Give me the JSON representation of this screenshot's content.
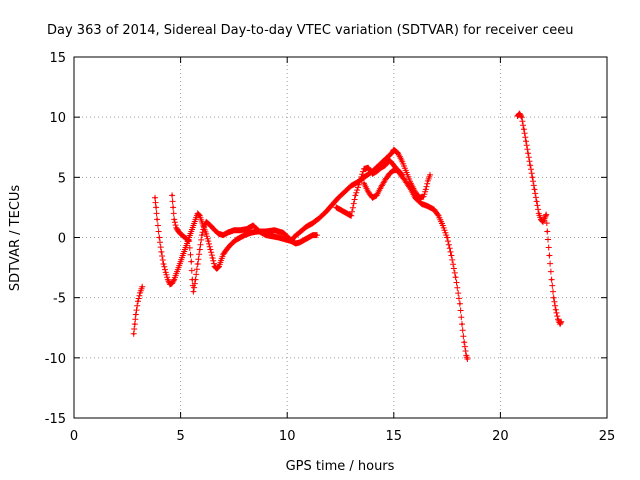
{
  "chart_data": {
    "type": "scatter",
    "title": "Day 363 of 2014, Sidereal Day-to-day VTEC variation (SDTVAR) for receiver ceeu",
    "xlabel": "GPS time / hours",
    "ylabel": "SDTVAR / TECUs",
    "xlim": [
      0,
      25
    ],
    "ylim": [
      -15,
      15
    ],
    "x_ticks": [
      0,
      5,
      10,
      15,
      20,
      25
    ],
    "y_ticks": [
      -15,
      -10,
      -5,
      0,
      5,
      10,
      15
    ],
    "x_tick_labels": [
      "0",
      "5",
      "10",
      "15",
      "20",
      "25"
    ],
    "y_tick_labels": [
      "-15",
      "-10",
      "-5",
      "0",
      "5",
      "10",
      "15"
    ],
    "grid": true,
    "marker": "+",
    "color": "#ff0000",
    "series": [
      {
        "name": "s1",
        "points": [
          [
            2.8,
            -8.0
          ],
          [
            2.85,
            -7.2
          ],
          [
            2.9,
            -6.4
          ],
          [
            3.0,
            -5.3
          ],
          [
            3.1,
            -4.6
          ],
          [
            3.2,
            -4.1
          ]
        ]
      },
      {
        "name": "s2",
        "points": [
          [
            3.8,
            3.3
          ],
          [
            3.85,
            2.5
          ],
          [
            3.9,
            1.5
          ],
          [
            4.0,
            0.0
          ],
          [
            4.1,
            -1.2
          ],
          [
            4.2,
            -2.2
          ],
          [
            4.3,
            -2.9
          ],
          [
            4.4,
            -3.5
          ],
          [
            4.5,
            -3.9
          ],
          [
            4.6,
            -3.8
          ],
          [
            4.7,
            -3.5
          ],
          [
            4.8,
            -3.0
          ],
          [
            4.9,
            -2.5
          ],
          [
            5.0,
            -2.0
          ],
          [
            5.1,
            -1.5
          ],
          [
            5.2,
            -1.0
          ],
          [
            5.3,
            -0.5
          ],
          [
            5.4,
            0.0
          ],
          [
            5.5,
            0.5
          ],
          [
            5.6,
            1.0
          ],
          [
            5.7,
            1.5
          ],
          [
            5.8,
            2.0
          ],
          [
            5.9,
            1.8
          ],
          [
            6.0,
            1.3
          ],
          [
            6.1,
            0.8
          ],
          [
            6.2,
            0.3
          ],
          [
            6.3,
            -0.3
          ],
          [
            6.4,
            -1.0
          ],
          [
            6.5,
            -1.7
          ],
          [
            6.6,
            -2.4
          ],
          [
            6.7,
            -2.6
          ],
          [
            6.8,
            -2.4
          ],
          [
            6.9,
            -1.9
          ],
          [
            7.0,
            -1.4
          ],
          [
            7.2,
            -0.9
          ],
          [
            7.4,
            -0.5
          ],
          [
            7.6,
            -0.2
          ],
          [
            7.8,
            0.0
          ],
          [
            8.0,
            0.2
          ],
          [
            8.3,
            0.4
          ],
          [
            8.6,
            0.5
          ],
          [
            9.0,
            0.5
          ],
          [
            9.4,
            0.6
          ],
          [
            9.8,
            0.4
          ],
          [
            10.0,
            0.1
          ],
          [
            10.2,
            -0.3
          ],
          [
            10.4,
            -0.5
          ],
          [
            10.6,
            -0.4
          ],
          [
            10.8,
            -0.2
          ],
          [
            11.0,
            0.0
          ],
          [
            11.2,
            0.2
          ],
          [
            11.4,
            0.2
          ]
        ]
      },
      {
        "name": "s3",
        "points": [
          [
            4.6,
            3.5
          ],
          [
            4.65,
            2.5
          ],
          [
            4.7,
            1.5
          ],
          [
            4.8,
            0.8
          ],
          [
            4.9,
            0.5
          ],
          [
            5.0,
            0.3
          ],
          [
            5.2,
            0.0
          ],
          [
            5.4,
            -0.3
          ],
          [
            5.5,
            -2.0
          ],
          [
            5.55,
            -3.5
          ],
          [
            5.6,
            -4.5
          ],
          [
            5.7,
            -3.5
          ],
          [
            5.8,
            -2.2
          ],
          [
            5.9,
            -1.0
          ],
          [
            6.0,
            0.2
          ],
          [
            6.1,
            0.9
          ],
          [
            6.2,
            1.3
          ],
          [
            6.4,
            1.0
          ],
          [
            6.6,
            0.6
          ],
          [
            6.8,
            0.3
          ],
          [
            7.0,
            0.2
          ],
          [
            7.2,
            0.4
          ],
          [
            7.5,
            0.6
          ],
          [
            7.8,
            0.6
          ],
          [
            8.1,
            0.7
          ],
          [
            8.4,
            1.0
          ],
          [
            8.7,
            0.5
          ],
          [
            9.0,
            0.2
          ],
          [
            9.3,
            0.1
          ],
          [
            9.6,
            0.0
          ],
          [
            9.8,
            -0.1
          ],
          [
            10.0,
            -0.2
          ],
          [
            10.2,
            -0.3
          ],
          [
            10.3,
            0.0
          ],
          [
            10.5,
            0.3
          ],
          [
            10.7,
            0.6
          ],
          [
            10.9,
            0.9
          ],
          [
            11.2,
            1.2
          ],
          [
            11.5,
            1.6
          ],
          [
            11.8,
            2.1
          ],
          [
            12.1,
            2.7
          ],
          [
            12.4,
            3.3
          ],
          [
            12.7,
            3.8
          ],
          [
            13.0,
            4.3
          ],
          [
            13.3,
            4.6
          ],
          [
            13.6,
            5.0
          ],
          [
            14.0,
            5.5
          ],
          [
            14.3,
            6.0
          ],
          [
            14.6,
            6.5
          ],
          [
            14.9,
            7.0
          ],
          [
            15.0,
            7.3
          ],
          [
            15.2,
            7.0
          ],
          [
            15.4,
            6.3
          ],
          [
            15.6,
            5.4
          ],
          [
            15.8,
            4.5
          ],
          [
            16.0,
            3.8
          ],
          [
            16.2,
            3.3
          ],
          [
            16.4,
            3.4
          ],
          [
            16.5,
            4.0
          ],
          [
            16.6,
            4.7
          ],
          [
            16.7,
            5.2
          ]
        ]
      },
      {
        "name": "s4",
        "points": [
          [
            12.3,
            2.5
          ],
          [
            12.5,
            2.3
          ],
          [
            12.8,
            2.0
          ],
          [
            13.0,
            1.8
          ],
          [
            13.2,
            3.5
          ],
          [
            13.4,
            4.6
          ],
          [
            13.6,
            5.7
          ],
          [
            13.8,
            5.8
          ],
          [
            14.0,
            5.3
          ],
          [
            14.2,
            5.5
          ],
          [
            14.4,
            5.8
          ],
          [
            14.6,
            6.0
          ],
          [
            14.8,
            6.4
          ],
          [
            15.0,
            6.0
          ],
          [
            15.2,
            5.5
          ],
          [
            15.5,
            4.8
          ],
          [
            15.8,
            4.0
          ],
          [
            16.0,
            3.3
          ],
          [
            16.3,
            2.8
          ],
          [
            16.6,
            2.6
          ],
          [
            16.9,
            2.3
          ],
          [
            17.1,
            1.8
          ],
          [
            17.3,
            1.0
          ],
          [
            17.5,
            0.0
          ],
          [
            17.7,
            -1.5
          ],
          [
            17.9,
            -3.3
          ],
          [
            18.1,
            -5.5
          ],
          [
            18.2,
            -7.2
          ],
          [
            18.3,
            -8.7
          ],
          [
            18.4,
            -9.8
          ],
          [
            18.45,
            -10.1
          ]
        ]
      },
      {
        "name": "s5",
        "points": [
          [
            13.6,
            4.5
          ],
          [
            13.8,
            3.8
          ],
          [
            14.0,
            3.3
          ],
          [
            14.2,
            3.5
          ],
          [
            14.4,
            4.2
          ],
          [
            14.6,
            4.8
          ],
          [
            14.8,
            5.3
          ],
          [
            15.0,
            5.6
          ],
          [
            15.2,
            5.6
          ],
          [
            15.4,
            5.2
          ]
        ]
      },
      {
        "name": "s6",
        "points": [
          [
            20.8,
            10.1
          ],
          [
            20.9,
            10.3
          ],
          [
            21.0,
            10.0
          ],
          [
            21.1,
            9.0
          ],
          [
            21.2,
            8.0
          ],
          [
            21.3,
            7.0
          ],
          [
            21.4,
            6.0
          ],
          [
            21.5,
            5.0
          ],
          [
            21.6,
            4.0
          ],
          [
            21.7,
            3.0
          ],
          [
            21.8,
            2.0
          ],
          [
            21.9,
            1.5
          ],
          [
            22.0,
            1.3
          ],
          [
            22.1,
            1.7
          ],
          [
            22.15,
            1.9
          ],
          [
            22.2,
            0.5
          ],
          [
            22.3,
            -1.5
          ],
          [
            22.4,
            -3.5
          ],
          [
            22.5,
            -5.0
          ],
          [
            22.6,
            -6.0
          ],
          [
            22.7,
            -6.8
          ],
          [
            22.8,
            -7.2
          ],
          [
            22.85,
            -7.0
          ]
        ]
      }
    ]
  }
}
